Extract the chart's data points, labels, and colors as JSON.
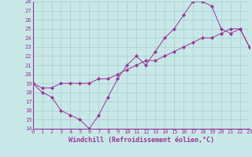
{
  "xlabel": "Windchill (Refroidissement éolien,°C)",
  "background_color": "#c8e8e8",
  "grid_color": "#a8cece",
  "line_color": "#993399",
  "xlim": [
    0,
    23
  ],
  "ylim": [
    14,
    28
  ],
  "xticks": [
    0,
    1,
    2,
    3,
    4,
    5,
    6,
    7,
    8,
    9,
    10,
    11,
    12,
    13,
    14,
    15,
    16,
    17,
    18,
    19,
    20,
    21,
    22,
    23
  ],
  "yticks": [
    14,
    15,
    16,
    17,
    18,
    19,
    20,
    21,
    22,
    23,
    24,
    25,
    26,
    27,
    28
  ],
  "line1_x": [
    0,
    1,
    2,
    3,
    4,
    5,
    6,
    7,
    8,
    9,
    10,
    11,
    12,
    13,
    14,
    15,
    16,
    17,
    18,
    19,
    20,
    21,
    22,
    23
  ],
  "line1_y": [
    19,
    18,
    17.5,
    16,
    15.5,
    15,
    14,
    15.5,
    17.5,
    19.5,
    21,
    22,
    21,
    22.5,
    24,
    25,
    26.5,
    28,
    28,
    27.5,
    25,
    24.5,
    25,
    23
  ],
  "line2_x": [
    0,
    1,
    2,
    3,
    4,
    5,
    6,
    7,
    8,
    9,
    10,
    11,
    12,
    13,
    14,
    15,
    16,
    17,
    18,
    19,
    20,
    21,
    22,
    23
  ],
  "line2_y": [
    19,
    18.5,
    18.5,
    19,
    19,
    19,
    19,
    19.5,
    19.5,
    20,
    20.5,
    21,
    21.5,
    21.5,
    22,
    22.5,
    23,
    23.5,
    24,
    24,
    24.5,
    25,
    25,
    23
  ],
  "marker": "D",
  "marker_size": 2.2,
  "font_color": "#993399",
  "tick_fontsize": 5.0,
  "label_fontsize": 6.0
}
